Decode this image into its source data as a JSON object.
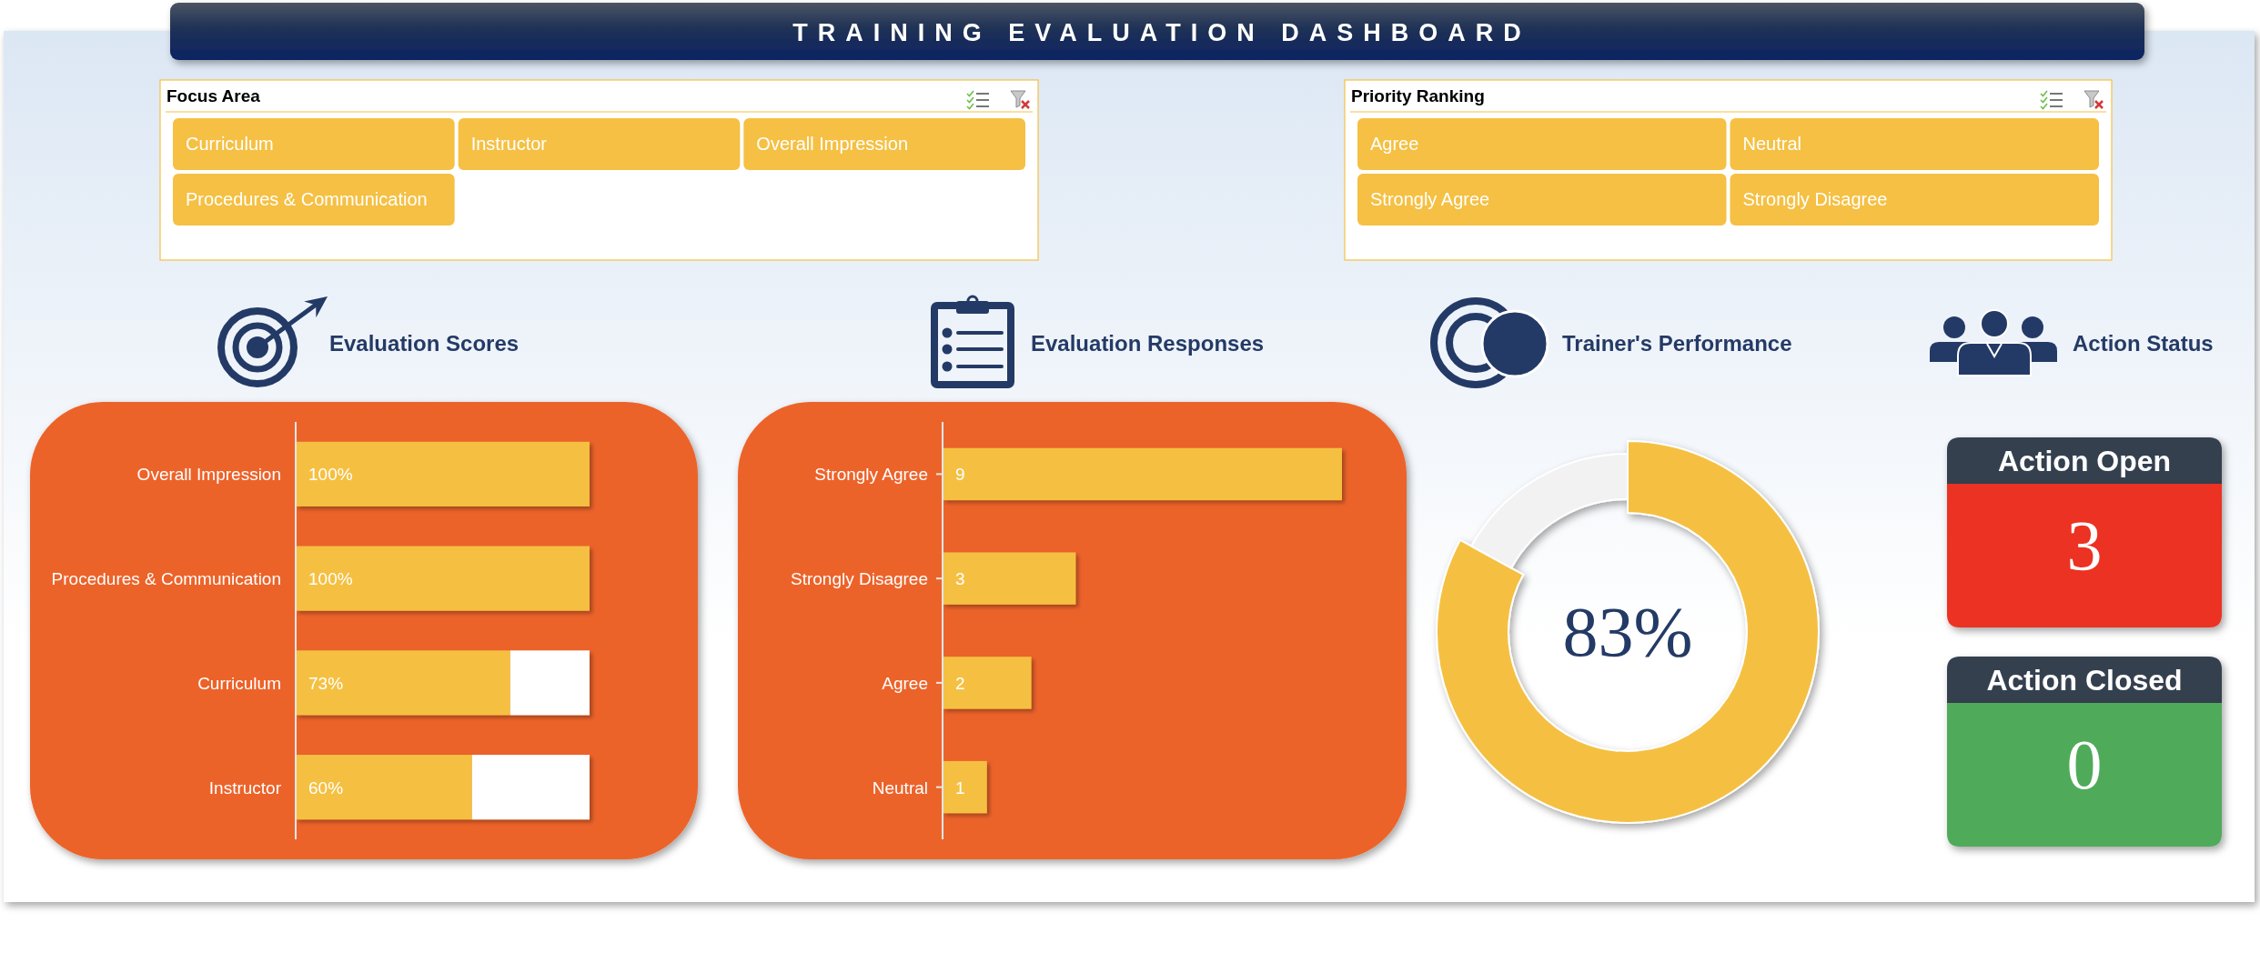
{
  "chart_data": [
    {
      "type": "other",
      "title": "TRAINING EVALUATION DASHBOARD"
    },
    {
      "type": "other",
      "title": "Focus Area",
      "categories": [
        "Curriculum",
        "Instructor",
        "Overall Impression",
        "Procedures & Communication"
      ],
      "color": "#f5c043"
    },
    {
      "type": "other",
      "title": "Priority Ranking",
      "categories": [
        "Agree",
        "Neutral",
        "Strongly Agree",
        "Strongly Disagree"
      ],
      "color": "#f5c043"
    },
    {
      "type": "bar",
      "title": "Evaluation Scores",
      "orientation": "horizontal",
      "stacked": true,
      "categories": [
        "Overall Impression",
        "Procedures & Communication",
        "Curriculum",
        "Instructor"
      ],
      "series": [
        {
          "color": "#f5c043",
          "values": [
            100,
            100,
            73,
            60
          ],
          "value_labels": [
            "100%",
            "100%",
            "73%",
            "60%"
          ]
        },
        {
          "color": "#ffffff",
          "values": [
            0,
            0,
            27,
            40
          ]
        }
      ]
    },
    {
      "type": "bar",
      "title": "Evaluation Responses",
      "orientation": "horizontal",
      "categories": [
        "Strongly Agree",
        "Strongly Disagree",
        "Agree",
        "Neutral"
      ],
      "values": [
        9,
        3,
        2,
        1
      ],
      "color": "#f5c043",
      "data_labels": true
    },
    {
      "type": "donut",
      "title": "Trainer's Performance",
      "categories": [
        null,
        null
      ],
      "values": [
        83,
        17
      ],
      "colors": [
        "#f5c043",
        "#f2f2f2"
      ],
      "value_labels": [
        "83%",
        null
      ]
    },
    {
      "type": "other",
      "title": "Action Status",
      "categories": [
        "Action Open",
        "Action Closed"
      ],
      "values": [
        3,
        0
      ],
      "colors": [
        "#ec3323",
        "#50ab5a"
      ],
      "data_labels": true
    }
  ]
}
